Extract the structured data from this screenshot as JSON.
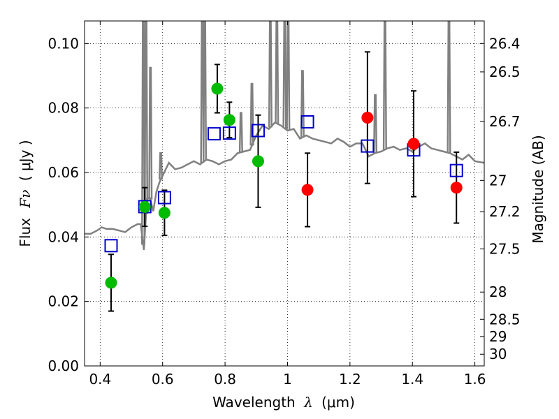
{
  "chart_data": {
    "type": "scatter",
    "xlabel_prefix": "Wavelength",
    "xlabel_sym": "λ",
    "xlabel_unit": "(μm)",
    "ylabel_prefix": "Flux",
    "ylabel_sym": "Fν",
    "ylabel_unit": "( μJy )",
    "y2label": "Magnitude (AB)",
    "xlim": [
      0.35,
      1.63
    ],
    "ylim": [
      0.0,
      0.107
    ],
    "grid": true,
    "x_ticks": [
      0.4,
      0.6,
      0.8,
      1.0,
      1.2,
      1.4,
      1.6
    ],
    "x_tick_labels": [
      "0.4",
      "0.6",
      "0.8",
      "1",
      "1.2",
      "1.4",
      "1.6"
    ],
    "y_ticks": [
      0.0,
      0.02,
      0.04,
      0.06,
      0.08,
      0.1
    ],
    "y_tick_labels": [
      "0.00",
      "0.02",
      "0.04",
      "0.06",
      "0.08",
      "0.10"
    ],
    "mag_ticks": [
      26.4,
      26.5,
      26.7,
      27,
      27.2,
      27.5,
      28,
      28.5,
      29,
      30
    ],
    "mag_tick_labels": [
      "26.4",
      "26.5",
      "26.7",
      "27",
      "27.2",
      "27.5",
      "28",
      "28.5",
      "29",
      "30"
    ],
    "colors": {
      "model": "#808080",
      "optical": "#00bb00",
      "infrared": "#ff0000",
      "model_points": "#0000cc",
      "errorbar": "#000000"
    },
    "series": [
      {
        "name": "model spectrum",
        "kind": "line",
        "x": [
          0.35,
          0.37,
          0.39,
          0.405,
          0.42,
          0.44,
          0.46,
          0.48,
          0.5,
          0.52,
          0.53,
          0.54,
          0.55,
          0.56,
          0.57,
          0.58,
          0.59,
          0.6,
          0.62,
          0.64,
          0.66,
          0.68,
          0.7,
          0.72,
          0.74,
          0.76,
          0.78,
          0.8,
          0.82,
          0.84,
          0.86,
          0.88,
          0.9,
          0.92,
          0.94,
          0.96,
          0.98,
          1.0,
          1.02,
          1.04,
          1.06,
          1.08,
          1.1,
          1.12,
          1.14,
          1.16,
          1.18,
          1.2,
          1.22,
          1.24,
          1.26,
          1.28,
          1.3,
          1.32,
          1.34,
          1.36,
          1.38,
          1.4,
          1.42,
          1.44,
          1.46,
          1.48,
          1.5,
          1.52,
          1.54,
          1.56,
          1.58,
          1.6,
          1.63
        ],
        "y": [
          0.041,
          0.041,
          0.042,
          0.043,
          0.0425,
          0.0425,
          0.042,
          0.0415,
          0.043,
          0.044,
          0.044,
          0.036,
          0.052,
          0.052,
          0.048,
          0.054,
          0.057,
          0.059,
          0.063,
          0.061,
          0.0615,
          0.0625,
          0.0635,
          0.0625,
          0.064,
          0.0635,
          0.0625,
          0.0635,
          0.064,
          0.066,
          0.0665,
          0.067,
          0.0715,
          0.0745,
          0.0735,
          0.0755,
          0.0745,
          0.073,
          0.0735,
          0.0705,
          0.0715,
          0.0705,
          0.07,
          0.0695,
          0.069,
          0.0705,
          0.0695,
          0.068,
          0.069,
          0.069,
          0.065,
          0.066,
          0.0665,
          0.0675,
          0.068,
          0.067,
          0.0675,
          0.0665,
          0.068,
          0.069,
          0.0675,
          0.067,
          0.0665,
          0.066,
          0.065,
          0.064,
          0.0655,
          0.0635,
          0.063
        ]
      },
      {
        "name": "emission lines",
        "kind": "spikes",
        "x": [
          0.538,
          0.547,
          0.561,
          0.594,
          0.727,
          0.735,
          0.851,
          0.886,
          0.945,
          0.966,
          0.991,
          1.002,
          1.048,
          1.281,
          1.312,
          1.517
        ],
        "y": [
          0.107,
          0.107,
          0.0925,
          0.066,
          0.107,
          0.107,
          0.0785,
          0.0875,
          0.107,
          0.107,
          0.107,
          0.107,
          0.0915,
          0.084,
          0.107,
          0.107
        ]
      },
      {
        "name": "observed optical",
        "kind": "points",
        "x": [
          0.435,
          0.543,
          0.606,
          0.775,
          0.814,
          0.906
        ],
        "y": [
          0.0258,
          0.0493,
          0.0475,
          0.086,
          0.0763,
          0.0635
        ],
        "err": [
          0.0088,
          0.006,
          0.007,
          0.0075,
          0.0055,
          0.0143
        ]
      },
      {
        "name": "observed infrared",
        "kind": "points",
        "x": [
          1.064,
          1.256,
          1.404,
          1.541
        ],
        "y": [
          0.0546,
          0.077,
          0.0689,
          0.0553
        ],
        "err": [
          0.0114,
          0.0204,
          0.0164,
          0.011
        ]
      },
      {
        "name": "model bandpass flux",
        "kind": "squares",
        "x": [
          0.435,
          0.543,
          0.606,
          0.765,
          0.814,
          0.906,
          1.064,
          1.256,
          1.404,
          1.541
        ],
        "y": [
          0.0373,
          0.0494,
          0.0522,
          0.072,
          0.0722,
          0.073,
          0.0757,
          0.0682,
          0.067,
          0.0606
        ]
      }
    ]
  }
}
